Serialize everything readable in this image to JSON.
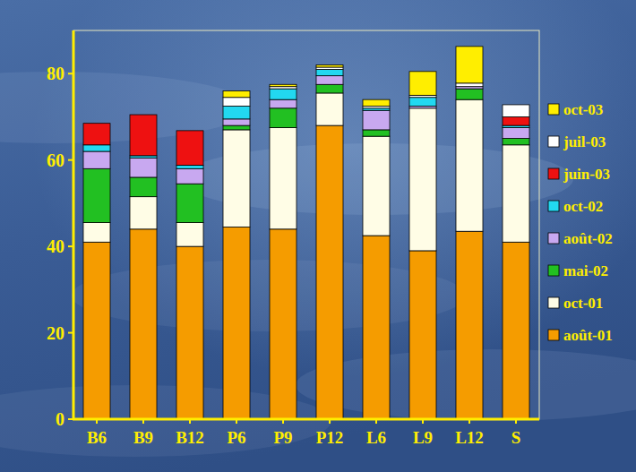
{
  "chart_data": {
    "type": "bar",
    "stacked": true,
    "legend": "right",
    "grid": false,
    "categories": [
      "B6",
      "B9",
      "B12",
      "P6",
      "P9",
      "P12",
      "L6",
      "L9",
      "L12",
      "S"
    ],
    "ylim": [
      0,
      90
    ],
    "yticks": [
      0,
      20,
      40,
      60,
      80
    ],
    "series": [
      {
        "name": "août-01",
        "color": "#f59c00",
        "values": [
          41,
          44,
          40,
          44.5,
          44,
          68,
          42.5,
          39,
          43.5,
          41
        ]
      },
      {
        "name": "oct-01",
        "color": "#fffde6",
        "values": [
          4.5,
          7.5,
          5.5,
          22.5,
          23.5,
          7.5,
          23,
          33,
          30.5,
          22.5
        ]
      },
      {
        "name": "mai-02",
        "color": "#22c022",
        "values": [
          12.5,
          4.5,
          9,
          1,
          4.5,
          2,
          1.5,
          0,
          2.5,
          1.5
        ]
      },
      {
        "name": "août-02",
        "color": "#c8a8f0",
        "values": [
          4,
          4.5,
          3.5,
          1.5,
          2,
          2,
          4.5,
          0.5,
          0.5,
          2.5
        ]
      },
      {
        "name": "oct-02",
        "color": "#22d8f0",
        "values": [
          1.5,
          0.5,
          0.8,
          3,
          2.5,
          1.5,
          0.5,
          2,
          0,
          0.5
        ]
      },
      {
        "name": "juin-03",
        "color": "#ee1111",
        "values": [
          5,
          9.5,
          8,
          0,
          0,
          0,
          0,
          0,
          0,
          2
        ]
      },
      {
        "name": "juil-03",
        "color": "#ffffff",
        "values": [
          0,
          0,
          0,
          2,
          0.5,
          0.5,
          0.5,
          0.5,
          0.8,
          2.8
        ]
      },
      {
        "name": "oct-03",
        "color": "#ffee00",
        "values": [
          0,
          0,
          0,
          1.5,
          0.5,
          0.5,
          1.5,
          5.5,
          8.5,
          0
        ]
      }
    ]
  }
}
